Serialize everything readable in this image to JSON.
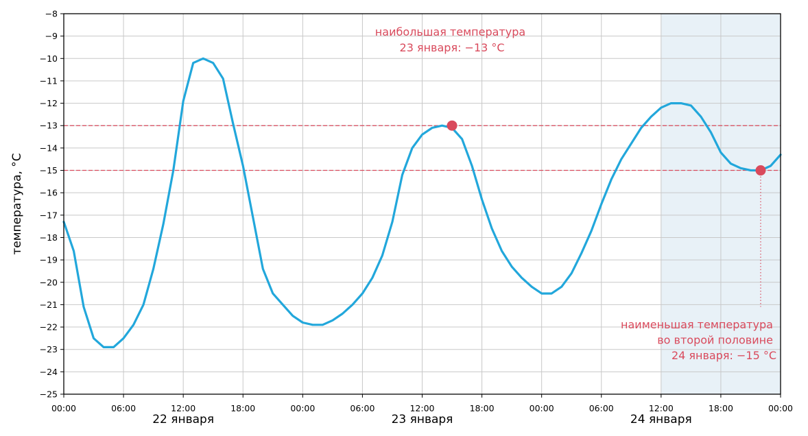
{
  "chart_data": {
    "type": "line",
    "title": "",
    "ylabel": "температура, °C",
    "xlabel": "",
    "ylim": [
      -25,
      -8
    ],
    "xlim_hours": [
      0,
      72
    ],
    "y_ticks": [
      -8,
      -9,
      -10,
      -11,
      -12,
      -13,
      -14,
      -15,
      -16,
      -17,
      -18,
      -19,
      -20,
      -21,
      -22,
      -23,
      -24,
      -25
    ],
    "x_ticks": [
      "00:00",
      "06:00",
      "12:00",
      "18:00",
      "00:00",
      "06:00",
      "12:00",
      "18:00",
      "00:00",
      "06:00",
      "12:00",
      "18:00",
      "00:00"
    ],
    "day_labels": [
      "22 января",
      "23 января",
      "24 января"
    ],
    "grid": true,
    "series": [
      {
        "color": "#22a7db",
        "x_hours": [
          0,
          1,
          2,
          3,
          4,
          5,
          6,
          7,
          8,
          9,
          10,
          11,
          12,
          13,
          14,
          15,
          16,
          17,
          18,
          19,
          20,
          21,
          22,
          23,
          24,
          25,
          26,
          27,
          28,
          29,
          30,
          31,
          32,
          33,
          34,
          35,
          36,
          37,
          38,
          39,
          40,
          41,
          42,
          43,
          44,
          45,
          46,
          47,
          48,
          49,
          50,
          51,
          52,
          53,
          54,
          55,
          56,
          57,
          58,
          59,
          60,
          61,
          62,
          63,
          64,
          65,
          66,
          67,
          68,
          69,
          70,
          71,
          72
        ],
        "values": [
          -17.3,
          -18.6,
          -21.1,
          -22.5,
          -22.9,
          -22.9,
          -22.5,
          -21.9,
          -21.0,
          -19.4,
          -17.4,
          -15.0,
          -11.9,
          -10.2,
          -10.0,
          -10.2,
          -10.9,
          -12.9,
          -14.8,
          -17.1,
          -19.4,
          -20.5,
          -21.0,
          -21.5,
          -21.8,
          -21.9,
          -21.9,
          -21.7,
          -21.4,
          -21.0,
          -20.5,
          -19.8,
          -18.8,
          -17.3,
          -15.2,
          -14.0,
          -13.4,
          -13.1,
          -13.0,
          -13.1,
          -13.6,
          -14.8,
          -16.3,
          -17.6,
          -18.6,
          -19.3,
          -19.8,
          -20.2,
          -20.5,
          -20.5,
          -20.2,
          -19.6,
          -18.7,
          -17.7,
          -16.5,
          -15.4,
          -14.5,
          -13.8,
          -13.1,
          -12.6,
          -12.2,
          -12.0,
          -12.0,
          -12.1,
          -12.6,
          -13.3,
          -14.2,
          -14.7,
          -14.9,
          -15.0,
          -15.0,
          -14.8,
          -14.3
        ]
      }
    ],
    "highlight_region_hours": [
      60,
      72
    ],
    "highlight_color": "#e8f1f7",
    "reference_lines": [
      {
        "value": -13,
        "color": "#d94a5c",
        "style": "dashed"
      },
      {
        "value": -15,
        "color": "#d94a5c",
        "style": "dashed"
      }
    ],
    "markers": [
      {
        "x_hours": 39,
        "value": -13,
        "color": "#d94a5c"
      },
      {
        "x_hours": 70,
        "value": -15,
        "color": "#d94a5c"
      }
    ],
    "marker_drop_line": {
      "x_hours": 70,
      "from": -15,
      "to": -21.1,
      "color": "#d94a5c"
    },
    "annotations": {
      "max": [
        "наибольшая температура",
        "23 января: −13 °C"
      ],
      "min": [
        "наименьшая температура",
        "во второй половине",
        "24 января: −15 °C"
      ],
      "color": "#d94a5c"
    }
  }
}
